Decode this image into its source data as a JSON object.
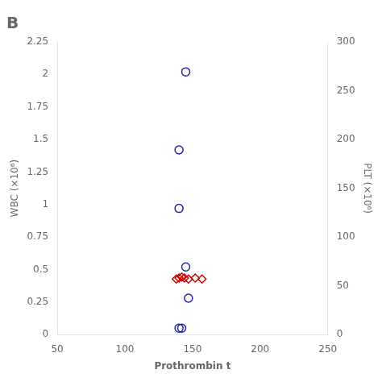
{
  "chart_data": {
    "type": "scatter",
    "title": "B",
    "xlabel": "Prothrombin t",
    "ylabel": "WBC (×10⁶)",
    "y2label": "PLT (×10⁶)",
    "xlim": [
      50,
      250
    ],
    "xticks": [
      50,
      100,
      150,
      200,
      250
    ],
    "ylim": [
      0,
      2.25
    ],
    "yticks": [
      0,
      0.25,
      0.5,
      0.75,
      1.0,
      1.25,
      1.5,
      1.75,
      2.0,
      2.25
    ],
    "y2lim": [
      0,
      300
    ],
    "y2ticks": [
      0,
      50,
      100,
      150,
      200,
      250,
      300
    ],
    "grid": false,
    "series": [
      {
        "x": [
          145,
          140,
          140,
          145,
          147,
          142,
          140
        ],
        "values": [
          2.02,
          1.42,
          0.97,
          0.52,
          0.28,
          0.05,
          0.05
        ],
        "color": "#2222aa",
        "marker": "circle"
      },
      {
        "x": [
          138,
          140,
          142,
          144,
          147,
          152,
          157
        ],
        "values": [
          57,
          58,
          59,
          58,
          57,
          58,
          57
        ],
        "color": "#cc0000",
        "marker": "diamond",
        "axis": "y2"
      }
    ]
  }
}
